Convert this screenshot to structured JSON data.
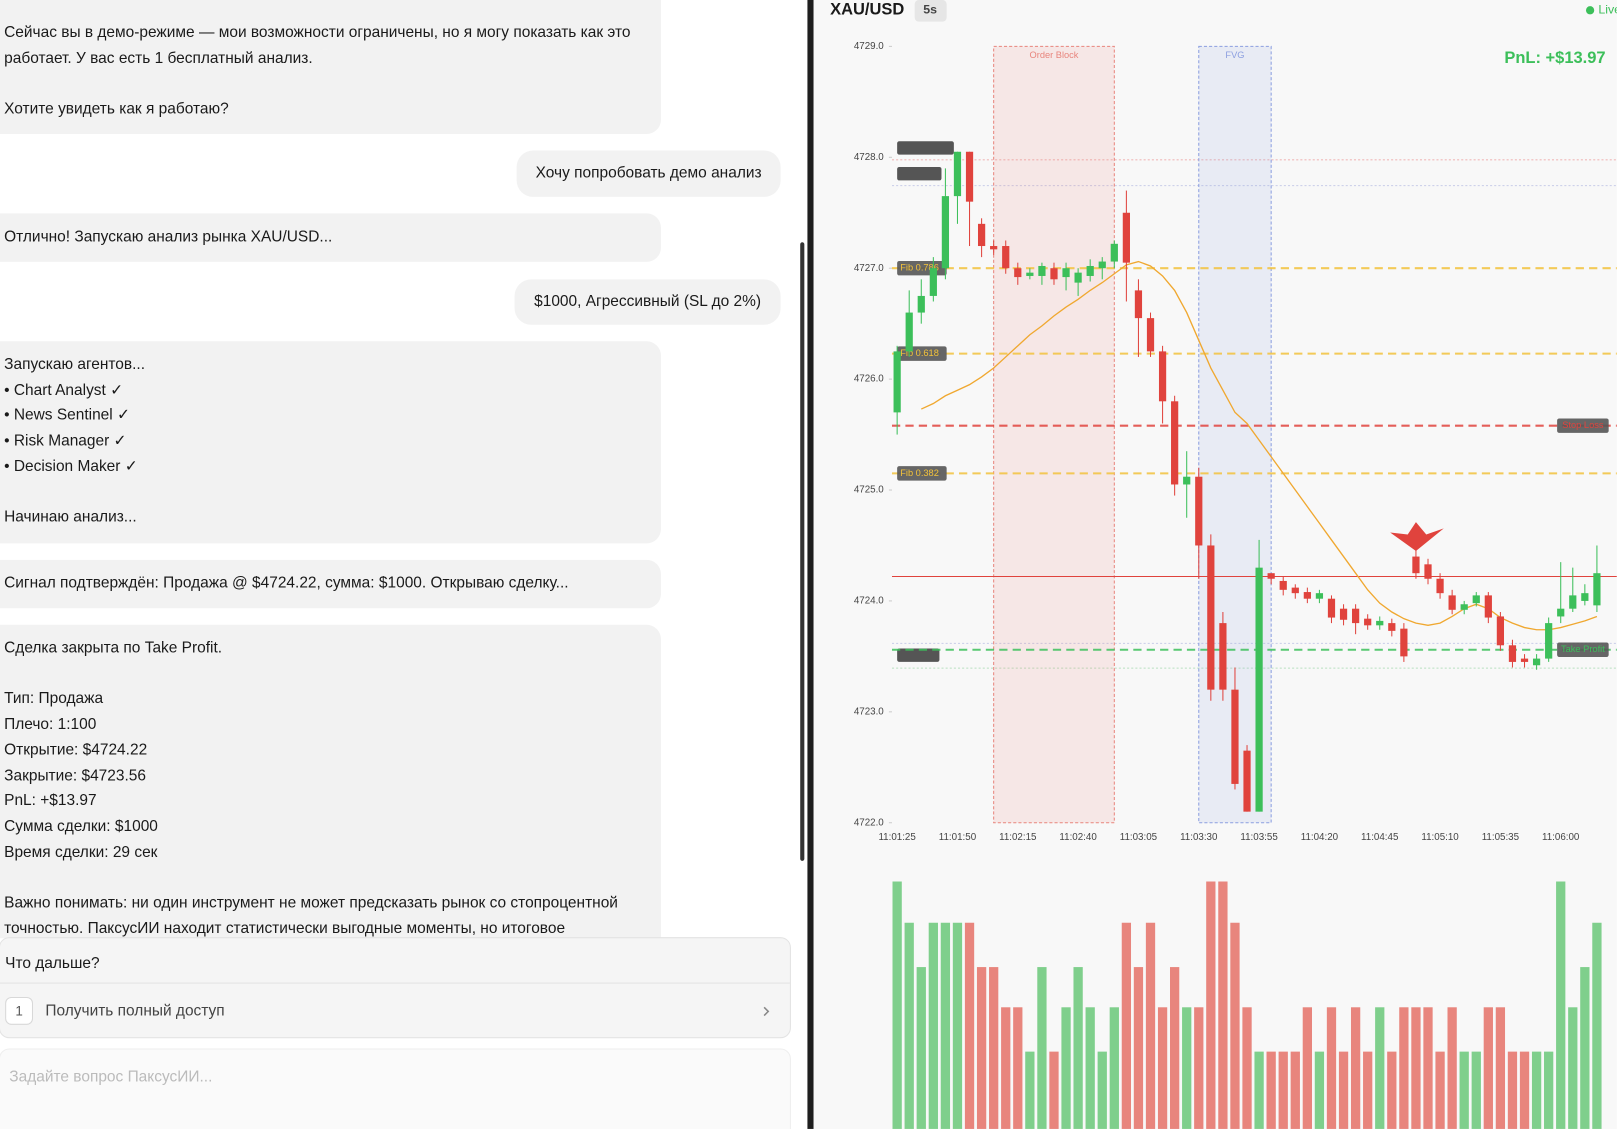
{
  "chat": {
    "messages": [
      {
        "role": "assistant",
        "text": "Сейчас вы в демо-режиме — мои возможности ограничены, но я могу показать как это работает. У вас есть 1 бесплатный анализ.\n\nХотите увидеть как я работаю?"
      },
      {
        "role": "user",
        "text": "Хочу попробовать демо анализ"
      },
      {
        "role": "assistant",
        "text": "Отлично! Запускаю анализ рынка XAU/USD..."
      },
      {
        "role": "user",
        "text": "$1000, Агрессивный (SL до 2%)"
      },
      {
        "role": "assistant",
        "text": "Запускаю агентов...\n• Chart Analyst ✓\n• News Sentinel ✓\n• Risk Manager ✓\n• Decision Maker ✓\n\nНачинаю анализ..."
      },
      {
        "role": "assistant",
        "text": "Сигнал подтверждён: Продажа @ $4724.22, сумма: $1000. Открываю сделку..."
      },
      {
        "role": "assistant",
        "text": "Сделка закрыта по Take Profit.\n\nТип: Продажа\nПлечо: 1:100\nОткрытие: $4724.22\nЗакрытие: $4723.56\nPnL: +$13.97\nСумма сделки: $1000\nВремя сделки: 29 сек\n\nВажно понимать: ни один инструмент не может предсказать рынок со стопроцентной точностью. ПаксусИИ находит статистически выгодные моменты, но итоговое"
      }
    ],
    "next": {
      "title": "Что дальше?",
      "options": [
        {
          "number": "1",
          "label": "Получить полный доступ"
        }
      ]
    },
    "input_placeholder": "Задайте вопрос ПаксусИИ..."
  },
  "chart_data": {
    "type": "candlestick",
    "title": "XAU/USD",
    "timeframe": "5s",
    "status": "Live",
    "pnl": "PnL: +$13.97",
    "categories": [
      "11:01:25",
      null,
      null,
      null,
      null,
      "11:01:50",
      null,
      null,
      null,
      null,
      "11:02:15",
      null,
      null,
      null,
      null,
      "11:02:40",
      null,
      null,
      null,
      null,
      "11:03:05",
      null,
      null,
      null,
      null,
      "11:03:30",
      null,
      null,
      null,
      null,
      "11:03:55",
      null,
      null,
      null,
      null,
      "11:04:20",
      null,
      null,
      null,
      null,
      "11:04:45",
      null,
      null,
      null,
      null,
      "11:05:10",
      null,
      null,
      null,
      null,
      "11:05:35",
      null,
      null,
      null,
      null,
      "11:06:00",
      null,
      null,
      null
    ],
    "open": [
      4725.7,
      4726.25,
      4726.6,
      4726.75,
      4727.0,
      4727.65,
      4728.05,
      4727.4,
      4727.2,
      4727.2,
      4727.0,
      4726.93,
      4726.93,
      4727.0,
      4726.92,
      4726.87,
      4726.93,
      4727.0,
      4727.06,
      4727.5,
      4726.8,
      4726.55,
      4726.25,
      4725.8,
      4725.05,
      4725.12,
      4724.5,
      4723.8,
      4723.2,
      4722.65,
      4722.1,
      4724.25,
      4724.18,
      4724.12,
      4724.08,
      4724.02,
      4724.02,
      4723.93,
      4723.93,
      4723.84,
      4723.78,
      4723.8,
      4723.75,
      4724.4,
      4724.33,
      4724.2,
      4724.05,
      4723.92,
      4723.98,
      4724.05,
      4723.86,
      4723.6,
      4723.48,
      4723.42,
      4723.48,
      4723.86,
      4723.93,
      4724.0,
      4723.96
    ],
    "high": [
      4726.3,
      4726.8,
      4726.9,
      4727.1,
      4727.9,
      4728.05,
      4728.05,
      4727.45,
      4727.25,
      4727.25,
      4727.05,
      4727.0,
      4727.05,
      4727.05,
      4727.05,
      4727.0,
      4727.08,
      4727.1,
      4727.25,
      4727.7,
      4726.9,
      4726.6,
      4726.3,
      4725.85,
      4725.35,
      4725.2,
      4724.6,
      4723.9,
      4723.4,
      4722.7,
      4724.55,
      4724.25,
      4724.22,
      4724.15,
      4724.12,
      4724.1,
      4724.05,
      4723.97,
      4723.97,
      4723.88,
      4723.86,
      4723.84,
      4723.8,
      4724.5,
      4724.38,
      4724.25,
      4724.1,
      4724.0,
      4724.08,
      4724.08,
      4723.9,
      4723.65,
      4723.52,
      4723.52,
      4723.85,
      4724.35,
      4724.3,
      4724.15,
      4724.5
    ],
    "low": [
      4725.5,
      4726.2,
      4726.5,
      4726.7,
      4726.9,
      4727.4,
      4727.2,
      4727.1,
      4727.12,
      4726.95,
      4726.85,
      4726.9,
      4726.85,
      4726.85,
      4726.8,
      4726.75,
      4726.88,
      4726.9,
      4727.0,
      4726.7,
      4726.2,
      4726.2,
      4725.6,
      4724.95,
      4724.75,
      4724.2,
      4723.1,
      4723.1,
      4722.3,
      4722.1,
      4722.1,
      4724.15,
      4724.05,
      4724.02,
      4723.98,
      4723.98,
      4723.8,
      4723.78,
      4723.7,
      4723.74,
      4723.74,
      4723.68,
      4723.45,
      4724.2,
      4724.15,
      4724.02,
      4723.88,
      4723.88,
      4723.95,
      4723.8,
      4723.55,
      4723.4,
      4723.4,
      4723.38,
      4723.45,
      4723.8,
      4723.9,
      4723.96,
      4723.9
    ],
    "close": [
      4726.25,
      4726.6,
      4726.75,
      4727.0,
      4727.65,
      4728.05,
      4727.6,
      4727.2,
      4727.17,
      4727.0,
      4726.92,
      4726.96,
      4727.02,
      4726.9,
      4727.0,
      4726.96,
      4727.02,
      4727.06,
      4727.22,
      4727.05,
      4726.55,
      4726.25,
      4725.8,
      4725.05,
      4725.12,
      4724.5,
      4723.2,
      4723.2,
      4722.35,
      4722.1,
      4724.3,
      4724.2,
      4724.1,
      4724.07,
      4724.02,
      4724.07,
      4723.85,
      4723.83,
      4723.8,
      4723.78,
      4723.82,
      4723.73,
      4723.5,
      4724.25,
      4724.2,
      4724.07,
      4723.92,
      4723.97,
      4724.05,
      4723.85,
      4723.6,
      4723.45,
      4723.45,
      4723.48,
      4723.8,
      4723.93,
      4724.05,
      4724.07,
      4724.25
    ],
    "volume": [
      240,
      200,
      157,
      200,
      200,
      200,
      200,
      157,
      157,
      118,
      118,
      75,
      157,
      75,
      118,
      157,
      118,
      75,
      118,
      200,
      157,
      200,
      118,
      157,
      118,
      118,
      240,
      240,
      200,
      118,
      75,
      75,
      75,
      75,
      118,
      75,
      118,
      75,
      118,
      75,
      118,
      75,
      118,
      118,
      118,
      75,
      118,
      75,
      75,
      118,
      118,
      75,
      75,
      75,
      75,
      240,
      118,
      157,
      200
    ],
    "ema": {
      "color": "#f0a830",
      "values": [
        null,
        null,
        4725.73,
        4725.78,
        4725.85,
        4725.9,
        4725.95,
        4726.02,
        4726.1,
        4726.2,
        4726.3,
        4726.4,
        4726.48,
        4726.57,
        4726.65,
        4726.72,
        4726.8,
        4726.87,
        4726.95,
        4727.03,
        4727.06,
        4727.02,
        4726.93,
        4726.8,
        4726.6,
        4726.35,
        4726.1,
        4725.9,
        4725.7,
        4725.6,
        4725.45,
        4725.3,
        4725.15,
        4725.0,
        4724.85,
        4724.7,
        4724.55,
        4724.4,
        4724.25,
        4724.1,
        4723.98,
        4723.9,
        4723.84,
        4723.8,
        4723.78,
        4723.8,
        4723.86,
        4723.93,
        4723.97,
        4723.93,
        4723.85,
        4723.8,
        4723.76,
        4723.74,
        4723.74,
        4723.76,
        4723.79,
        4723.82,
        4723.86
      ]
    },
    "up_color": "#3cbf5a",
    "down_color": "#e0433d",
    "volume_up_color": "#7fcf8c",
    "volume_down_color": "#e8857d",
    "ylim": [
      4722,
      4729
    ],
    "yticks": [
      {
        "value": 4722,
        "label": "4722.0"
      },
      {
        "value": 4723,
        "label": "4723.0"
      },
      {
        "value": 4724,
        "label": "4724.0"
      },
      {
        "value": 4725,
        "label": "4725.0"
      },
      {
        "value": 4726,
        "label": "4726.0"
      },
      {
        "value": 4727,
        "label": "4727.0"
      },
      {
        "value": 4728,
        "label": "4728.0"
      },
      {
        "value": 4729,
        "label": "4729.0"
      }
    ],
    "zones": [
      {
        "name": "Order Block",
        "from": 8,
        "to": 18,
        "color": "#e8857d"
      },
      {
        "name": "FVG",
        "from": 25,
        "to": 31,
        "color": "#8c9fe0"
      }
    ],
    "levels": [
      {
        "name": "Fib 0.786",
        "value": 4727.0,
        "color": "#f2c23c",
        "label_side": "left"
      },
      {
        "name": "Fib 0.618",
        "value": 4726.23,
        "color": "#f2c23c",
        "label_side": "left"
      },
      {
        "name": "Fib 0.382",
        "value": 4725.15,
        "color": "#f2c23c",
        "label_side": "left"
      },
      {
        "name": "Stop Loss",
        "value": 4725.58,
        "color": "#e0433d",
        "label_side": "right"
      },
      {
        "name": "Take Profit",
        "value": 4723.56,
        "color": "#3cbf5a",
        "label_side": "right"
      }
    ],
    "entry": 4724.22,
    "signal": {
      "index": 43,
      "price": 4724.45,
      "color": "#e0433d"
    }
  }
}
